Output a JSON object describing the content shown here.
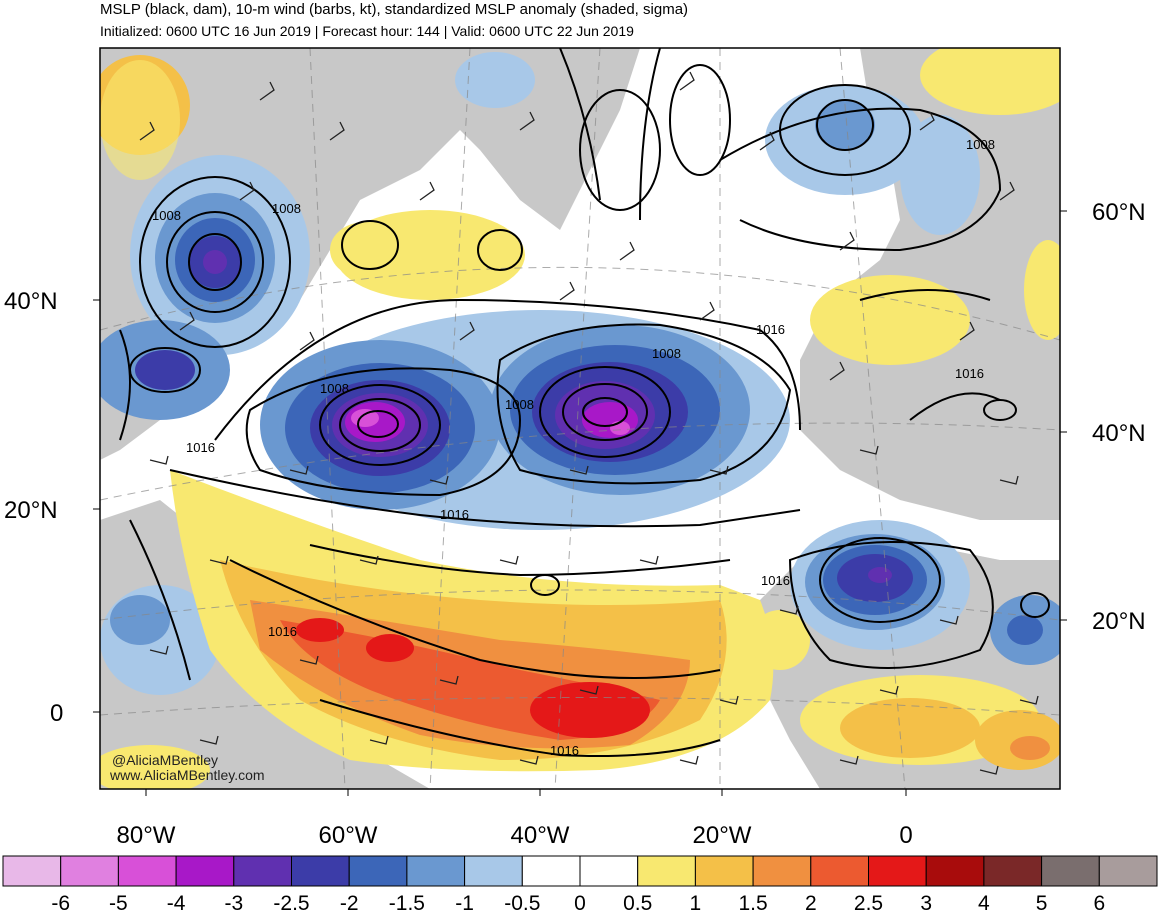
{
  "header": {
    "title": "MSLP (black, dam), 10-m wind (barbs, kt), standardized MSLP anomaly (shaded, sigma)",
    "subtitle": "Initialized: 0600 UTC 16 Jun 2019 | Forecast hour: 144 | Valid: 0600 UTC 22 Jun 2019"
  },
  "axes": {
    "left_lat": [
      "40°N",
      "20°N",
      "0"
    ],
    "right_lat": [
      "60°N",
      "40°N",
      "20°N"
    ],
    "bottom_lon": [
      "80°W",
      "60°W",
      "40°W",
      "20°W",
      "0"
    ]
  },
  "isobar_labels": [
    "1008",
    "1008",
    "1008",
    "1008",
    "1008",
    "1008",
    "1016",
    "1016",
    "1016",
    "1016",
    "1016",
    "1016",
    "1016"
  ],
  "credit": {
    "handle": "@AliciaMBentley",
    "site": "www.AliciaMBentley.com"
  },
  "colorbar": {
    "colors": [
      "#e8b8e8",
      "#e080e0",
      "#d850d8",
      "#a818c8",
      "#6030b0",
      "#3c3ca8",
      "#3c66b8",
      "#6a98d0",
      "#a8c8e8",
      "#ffffff",
      "#ffffff",
      "#f8e870",
      "#f4c048",
      "#f09040",
      "#ec5a30",
      "#e41818",
      "#a80c0c",
      "#7a2828",
      "#7a6e6e",
      "#a89c9c"
    ],
    "labels": [
      "-6",
      "-5",
      "-4",
      "-3",
      "-2.5",
      "-2",
      "-1.5",
      "-1",
      "-0.5",
      "0",
      "0.5",
      "1",
      "1.5",
      "2",
      "2.5",
      "3",
      "4",
      "5",
      "6"
    ]
  },
  "colors": {
    "land": "#c8c8c8",
    "ocean_neutral": "#ffffff",
    "isobar": "#000000"
  }
}
